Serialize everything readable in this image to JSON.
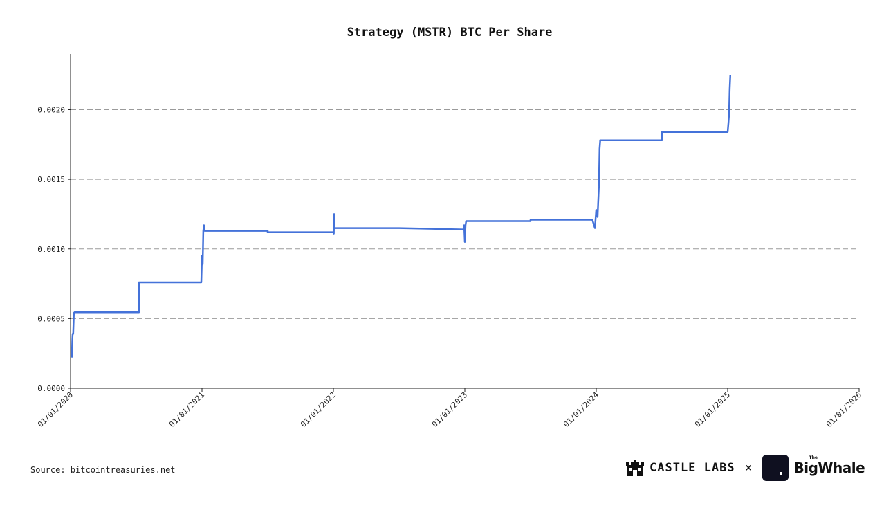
{
  "chart_data": {
    "type": "line",
    "title": "Strategy (MSTR) BTC Per Share",
    "xlabel": "",
    "ylabel": "",
    "ylim": [
      0,
      0.0024
    ],
    "y_ticks": [
      "0.0000",
      "0.0005",
      "0.0010",
      "0.0015",
      "0.0020"
    ],
    "y_tick_values": [
      0,
      0.0005,
      0.001,
      0.0015,
      0.002
    ],
    "x_ticks": [
      "01/01/2020",
      "01/01/2021",
      "01/01/2022",
      "01/01/2023",
      "01/01/2024",
      "01/01/2025",
      "01/01/2026"
    ],
    "xlim": [
      2020.0,
      2026.0
    ],
    "grid": "horizontal dashed",
    "series": [
      {
        "name": "BTC Per Share",
        "color": "#4472d9",
        "x": [
          2020.01,
          2020.013,
          2020.016,
          2020.02,
          2020.025,
          2020.03,
          2020.52,
          2020.52,
          2020.995,
          2021.0,
          2021.005,
          2021.01,
          2021.015,
          2021.02,
          2021.03,
          2021.5,
          2021.5,
          2022.0,
          2022.003,
          2022.006,
          2022.008,
          2022.011,
          2022.5,
          2022.99,
          2022.995,
          2023.0,
          2023.005,
          2023.01,
          2023.02,
          2023.5,
          2023.5,
          2023.97,
          2023.99,
          2024.0,
          2024.01,
          2024.02,
          2024.025,
          2024.03,
          2024.5,
          2024.5,
          2025.0,
          2025.005,
          2025.01,
          2025.015,
          2025.02
        ],
        "y": [
          0.00022,
          0.00034,
          0.00039,
          0.00039,
          0.00054,
          0.000545,
          0.000545,
          0.00076,
          0.00076,
          0.00095,
          0.00089,
          0.00113,
          0.00117,
          0.00113,
          0.00113,
          0.00113,
          0.00112,
          0.00112,
          0.00111,
          0.00125,
          0.00115,
          0.00115,
          0.00115,
          0.00114,
          0.00117,
          0.00105,
          0.00117,
          0.0012,
          0.0012,
          0.0012,
          0.00121,
          0.00121,
          0.00115,
          0.00128,
          0.00123,
          0.00145,
          0.00172,
          0.00178,
          0.00178,
          0.00184,
          0.00184,
          0.0019,
          0.00196,
          0.00215,
          0.00225
        ]
      }
    ]
  },
  "footer": {
    "source": "Source: bitcointreasuries.net",
    "castle_labs": "CASTLE LABS",
    "times": "×",
    "the": "The",
    "big_whale": "BigWhale"
  }
}
